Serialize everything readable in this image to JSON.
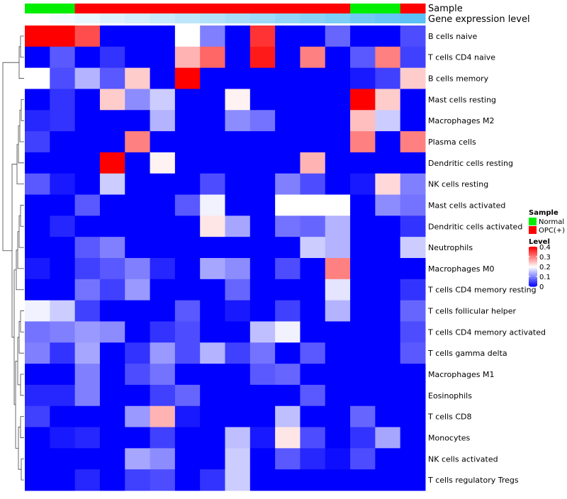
{
  "chart_data": {
    "type": "heatmap",
    "title": "",
    "annotations": {
      "sample_label": "Sample",
      "level_label": "Gene expression level"
    },
    "rows": [
      "B cells naive",
      "T cells CD4 naive",
      "B cells memory",
      "Mast cells resting",
      "Macrophages M2",
      "Plasma cells",
      "Dendritic cells resting",
      "NK cells resting",
      "Mast cells activated",
      "Dendritic cells activated",
      "Neutrophils",
      "Macrophages M0",
      "T cells CD4 memory resting",
      "T cells follicular helper",
      "T cells CD4 memory activated",
      "T cells gamma delta",
      "Macrophages M1",
      "Eosinophils",
      "T cells CD8",
      "Monocytes",
      "NK cells activated",
      "T cells regulatory  Tregs"
    ],
    "sample_groups": [
      "Normal",
      "Normal",
      "OPC(+)",
      "OPC(+)",
      "OPC(+)",
      "OPC(+)",
      "OPC(+)",
      "OPC(+)",
      "OPC(+)",
      "OPC(+)",
      "OPC(+)",
      "OPC(+)",
      "OPC(+)",
      "Normal",
      "Normal",
      "OPC(+)"
    ],
    "expression_level_annotation": [
      0.02,
      0.04,
      0.06,
      0.08,
      0.1,
      0.12,
      0.14,
      0.16,
      0.18,
      0.2,
      0.22,
      0.24,
      0.26,
      0.28,
      0.3,
      0.32
    ],
    "values": [
      [
        0.4,
        0.4,
        0.34,
        0.0,
        0.0,
        0.0,
        0.2,
        0.1,
        0.0,
        0.36,
        0.0,
        0.0,
        0.08,
        0.0,
        0.0,
        0.06
      ],
      [
        0.0,
        0.07,
        0.0,
        0.04,
        0.0,
        0.0,
        0.26,
        0.32,
        0.0,
        0.38,
        0.0,
        0.3,
        0.0,
        0.07,
        0.3,
        0.05
      ],
      [
        0.2,
        0.06,
        0.14,
        0.07,
        0.24,
        0.0,
        0.4,
        0.0,
        0.0,
        0.0,
        0.0,
        0.0,
        0.0,
        0.02,
        0.05,
        0.24
      ],
      [
        0.0,
        0.04,
        0.0,
        0.24,
        0.11,
        0.16,
        0.0,
        0.0,
        0.21,
        0.0,
        0.0,
        0.0,
        0.0,
        0.4,
        0.24,
        0.0
      ],
      [
        0.03,
        0.04,
        0.0,
        0.0,
        0.0,
        0.14,
        0.0,
        0.0,
        0.11,
        0.09,
        0.0,
        0.0,
        0.0,
        0.25,
        0.16,
        0.0
      ],
      [
        0.05,
        0.0,
        0.0,
        0.0,
        0.3,
        0.0,
        0.0,
        0.0,
        0.0,
        0.0,
        0.0,
        0.0,
        0.0,
        0.3,
        0.0,
        0.3
      ],
      [
        0.0,
        0.0,
        0.0,
        0.4,
        0.0,
        0.21,
        0.0,
        0.0,
        0.0,
        0.0,
        0.0,
        0.26,
        0.0,
        0.0,
        0.0,
        0.0
      ],
      [
        0.07,
        0.02,
        0.0,
        0.16,
        0.0,
        0.0,
        0.0,
        0.06,
        0.0,
        0.0,
        0.1,
        0.06,
        0.0,
        0.02,
        0.23,
        0.1
      ],
      [
        0.0,
        0.0,
        0.07,
        0.0,
        0.0,
        0.0,
        0.07,
        0.19,
        0.0,
        0.0,
        0.2,
        0.2,
        0.2,
        0.0,
        0.11,
        0.09
      ],
      [
        0.0,
        0.03,
        0.0,
        0.0,
        0.0,
        0.0,
        0.0,
        0.22,
        0.13,
        0.0,
        0.09,
        0.08,
        0.14,
        0.0,
        0.0,
        0.04
      ],
      [
        0.0,
        0.0,
        0.07,
        0.1,
        0.0,
        0.0,
        0.0,
        0.0,
        0.0,
        0.0,
        0.0,
        0.16,
        0.14,
        0.0,
        0.0,
        0.16
      ],
      [
        0.02,
        0.0,
        0.05,
        0.07,
        0.1,
        0.03,
        0.0,
        0.13,
        0.11,
        0.0,
        0.06,
        0.0,
        0.3,
        0.0,
        0.0,
        0.0
      ],
      [
        0.0,
        0.0,
        0.09,
        0.05,
        0.12,
        0.0,
        0.0,
        0.0,
        0.08,
        0.0,
        0.0,
        0.0,
        0.18,
        0.0,
        0.0,
        0.04
      ],
      [
        0.19,
        0.16,
        0.05,
        0.0,
        0.0,
        0.0,
        0.07,
        0.0,
        0.02,
        0.0,
        0.05,
        0.0,
        0.14,
        0.0,
        0.0,
        0.08
      ],
      [
        0.09,
        0.1,
        0.12,
        0.11,
        0.0,
        0.04,
        0.06,
        0.0,
        0.0,
        0.15,
        0.19,
        0.0,
        0.0,
        0.0,
        0.0,
        0.06
      ],
      [
        0.1,
        0.04,
        0.13,
        0.0,
        0.04,
        0.12,
        0.06,
        0.14,
        0.05,
        0.09,
        0.0,
        0.07,
        0.0,
        0.0,
        0.0,
        0.07
      ],
      [
        0.0,
        0.0,
        0.1,
        0.0,
        0.06,
        0.09,
        0.0,
        0.0,
        0.0,
        0.07,
        0.08,
        0.0,
        0.0,
        0.0,
        0.0,
        0.0
      ],
      [
        0.03,
        0.03,
        0.1,
        0.0,
        0.0,
        0.05,
        0.08,
        0.0,
        0.0,
        0.0,
        0.0,
        0.07,
        0.0,
        0.0,
        0.0,
        0.0
      ],
      [
        0.05,
        0.0,
        0.0,
        0.0,
        0.12,
        0.26,
        0.02,
        0.0,
        0.0,
        0.0,
        0.15,
        0.0,
        0.0,
        0.08,
        0.0,
        0.0
      ],
      [
        0.0,
        0.02,
        0.03,
        0.0,
        0.0,
        0.05,
        0.0,
        0.0,
        0.15,
        0.02,
        0.22,
        0.06,
        0.0,
        0.04,
        0.13,
        0.0
      ],
      [
        0.0,
        0.0,
        0.0,
        0.0,
        0.13,
        0.11,
        0.0,
        0.0,
        0.16,
        0.0,
        0.07,
        0.03,
        0.01,
        0.06,
        0.0,
        0.0
      ],
      [
        0.0,
        0.0,
        0.03,
        0.0,
        0.05,
        0.06,
        0.0,
        0.04,
        0.16,
        0.0,
        0.0,
        0.0,
        0.0,
        0.0,
        0.0,
        0.0
      ]
    ],
    "legend": {
      "sample_title": "Sample",
      "sample_items": [
        {
          "label": "Normal",
          "color": "#00ee00"
        },
        {
          "label": "OPC(+)",
          "color": "#ff0000"
        }
      ],
      "level_title": "Level",
      "level_ticks": [
        "0.4",
        "0.3",
        "0.2",
        "0.1",
        "0"
      ],
      "level_tick_values": [
        0.4,
        0.3,
        0.2,
        0.1,
        0.0
      ],
      "range": [
        0,
        0.4
      ]
    },
    "colors": {
      "low": "#0000ff",
      "mid": "#ffffff",
      "high": "#ff0000",
      "normal": "#00ee00",
      "opc": "#ff0000",
      "annotation_low": "#ffffff",
      "annotation_high": "#5bc0f5"
    }
  }
}
